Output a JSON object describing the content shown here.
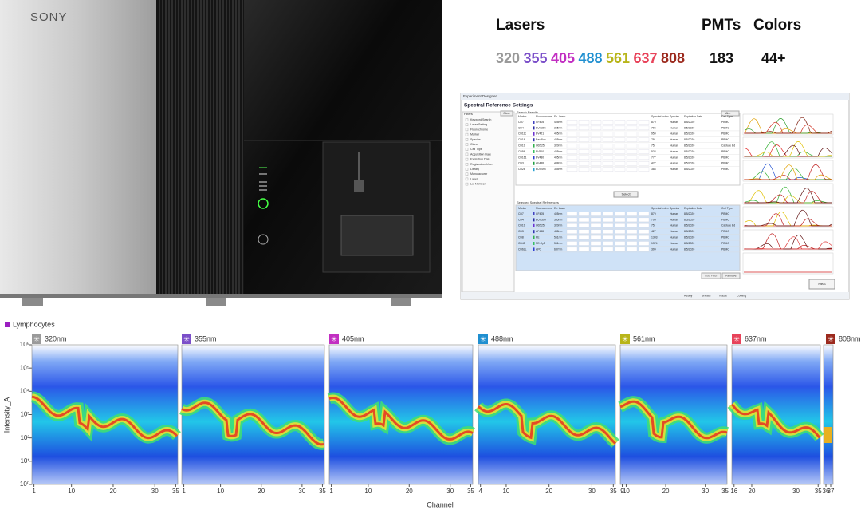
{
  "device": {
    "brand": "SONY"
  },
  "specs": {
    "lasers_title": "Lasers",
    "pmts_title": "PMTs",
    "colors_title": "Colors",
    "lasers": [
      {
        "label": "320",
        "color": "#9a9a9a"
      },
      {
        "label": "355",
        "color": "#7b4fc9"
      },
      {
        "label": "405",
        "color": "#c22fc2"
      },
      {
        "label": "488",
        "color": "#1f8fd0"
      },
      {
        "label": "561",
        "color": "#b8b51a"
      },
      {
        "label": "637",
        "color": "#e8435a"
      },
      {
        "label": "808",
        "color": "#9c2a1e"
      }
    ],
    "pmts": "183",
    "colors": "44+"
  },
  "software": {
    "window_title": "Experiment Designer",
    "heading": "Spectral Reference Settings",
    "filters_label": "Filters",
    "clear": "Clear",
    "filters": [
      "Keyword Search",
      "Laser Setting",
      "Fluorochrome",
      "Marker",
      "Species",
      "Clone",
      "Cell Type",
      "Acquisition Date",
      "Expiration Date",
      "Registration User",
      "Library",
      "Manufacturer",
      "Label",
      "Lot Number"
    ],
    "search_label": "Search Results",
    "all": "ALL",
    "columns": [
      "Marker",
      "Fluorochrome",
      "Ex. Laser",
      "Spectral Index",
      "Species",
      "Expiration Date",
      "Cell Type"
    ],
    "search_rows": [
      [
        "CD7",
        "CF405",
        "405nm",
        "879",
        "Human",
        "8/5/2020",
        "PBMC"
      ],
      [
        "CD4",
        "BUV395",
        "355nm",
        "795",
        "Human",
        "8/5/2020",
        "PBMC"
      ],
      [
        "CD11c",
        "BV421",
        "405nm",
        "950",
        "Human",
        "8/5/2020",
        "PBMC"
      ],
      [
        "CD16",
        "PacBlue",
        "405nm",
        "79",
        "Human",
        "8/5/2020",
        "PBMC"
      ],
      [
        "CD19",
        "QD525",
        "320nm",
        "75",
        "Human",
        "8/5/2020",
        "Capture Bd"
      ],
      [
        "CD56",
        "BV510",
        "405nm",
        "532",
        "Human",
        "8/5/2020",
        "PBMC"
      ],
      [
        "CD161",
        "BV480",
        "405nm",
        "777",
        "Human",
        "8/5/2020",
        "PBMC"
      ],
      [
        "CD3",
        "AF488",
        "488nm",
        "427",
        "Human",
        "8/5/2020",
        "PBMC"
      ],
      [
        "CD28",
        "BUV496",
        "355nm",
        "384",
        "Human",
        "8/5/2020",
        "PBMC"
      ]
    ],
    "select": "Select",
    "selected_label": "Selected Spectral References",
    "selected_rows": [
      [
        "CD7",
        "CF405",
        "405nm",
        "879",
        "Human",
        "8/5/2020",
        "PBMC"
      ],
      [
        "CD4",
        "BUV395",
        "355nm",
        "795",
        "Human",
        "8/5/2020",
        "PBMC"
      ],
      [
        "CD19",
        "QD525",
        "320nm",
        "75",
        "Human",
        "8/5/2020",
        "Capture Bd"
      ],
      [
        "CD3",
        "AF488",
        "488nm",
        "427",
        "Human",
        "8/5/2020",
        "PBMC"
      ],
      [
        "CD8",
        "PE",
        "561nm",
        "1303",
        "Human",
        "8/5/2020",
        "PBMC"
      ],
      [
        "CD45",
        "PE-Cy5",
        "561nm",
        "1374",
        "Human",
        "8/5/2020",
        "PBMC"
      ],
      [
        "CD62L",
        "APC",
        "637nm",
        "399",
        "Human",
        "8/5/2020",
        "PBMC"
      ]
    ],
    "add_filter": "Add Filter",
    "remove": "Remove",
    "next": "Next",
    "status": [
      "Ready",
      "Sheath",
      "Waste",
      "Cooling"
    ]
  },
  "spectrum": {
    "legend": "Lymphocytes",
    "legend_color": "#9b1fc1",
    "y_label": "Intensity_A",
    "x_label": "Channel",
    "log_y": true,
    "ylim": [
      1,
      1000000
    ],
    "yticks": [
      {
        "value": 1,
        "label": "10⁰"
      },
      {
        "value": 10,
        "label": "10¹"
      },
      {
        "value": 100,
        "label": "10²"
      },
      {
        "value": 1000,
        "label": "10³"
      },
      {
        "value": 10000,
        "label": "10⁴"
      },
      {
        "value": 100000,
        "label": "10⁵"
      },
      {
        "value": 1000000,
        "label": "10⁶"
      }
    ],
    "panels": [
      {
        "name": "320nm",
        "color": "#9a9a9a",
        "xlim": [
          0.5,
          35.5
        ],
        "xticks": [
          1,
          10,
          20,
          30,
          35
        ]
      },
      {
        "name": "355nm",
        "color": "#7b4fc9",
        "xlim": [
          0.5,
          35.5
        ],
        "xticks": [
          1,
          10,
          20,
          30,
          35
        ]
      },
      {
        "name": "405nm",
        "color": "#c22fc2",
        "xlim": [
          0.5,
          35.5
        ],
        "xticks": [
          1,
          10,
          20,
          30,
          35
        ]
      },
      {
        "name": "488nm",
        "color": "#1f8fd0",
        "xlim": [
          3.5,
          35.5
        ],
        "xticks": [
          4,
          10,
          20,
          30,
          35
        ]
      },
      {
        "name": "561nm",
        "color": "#b8b51a",
        "xlim": [
          8.5,
          35.5
        ],
        "xticks": [
          9,
          10,
          20,
          30,
          35
        ]
      },
      {
        "name": "637nm",
        "color": "#e8435a",
        "xlim": [
          15.5,
          35.5
        ],
        "xticks": [
          16,
          20,
          30,
          35
        ]
      },
      {
        "name": "808nm",
        "color": "#9c2a1e",
        "xlim": [
          35.5,
          37.5
        ],
        "xticks": [
          36,
          37
        ]
      }
    ]
  }
}
